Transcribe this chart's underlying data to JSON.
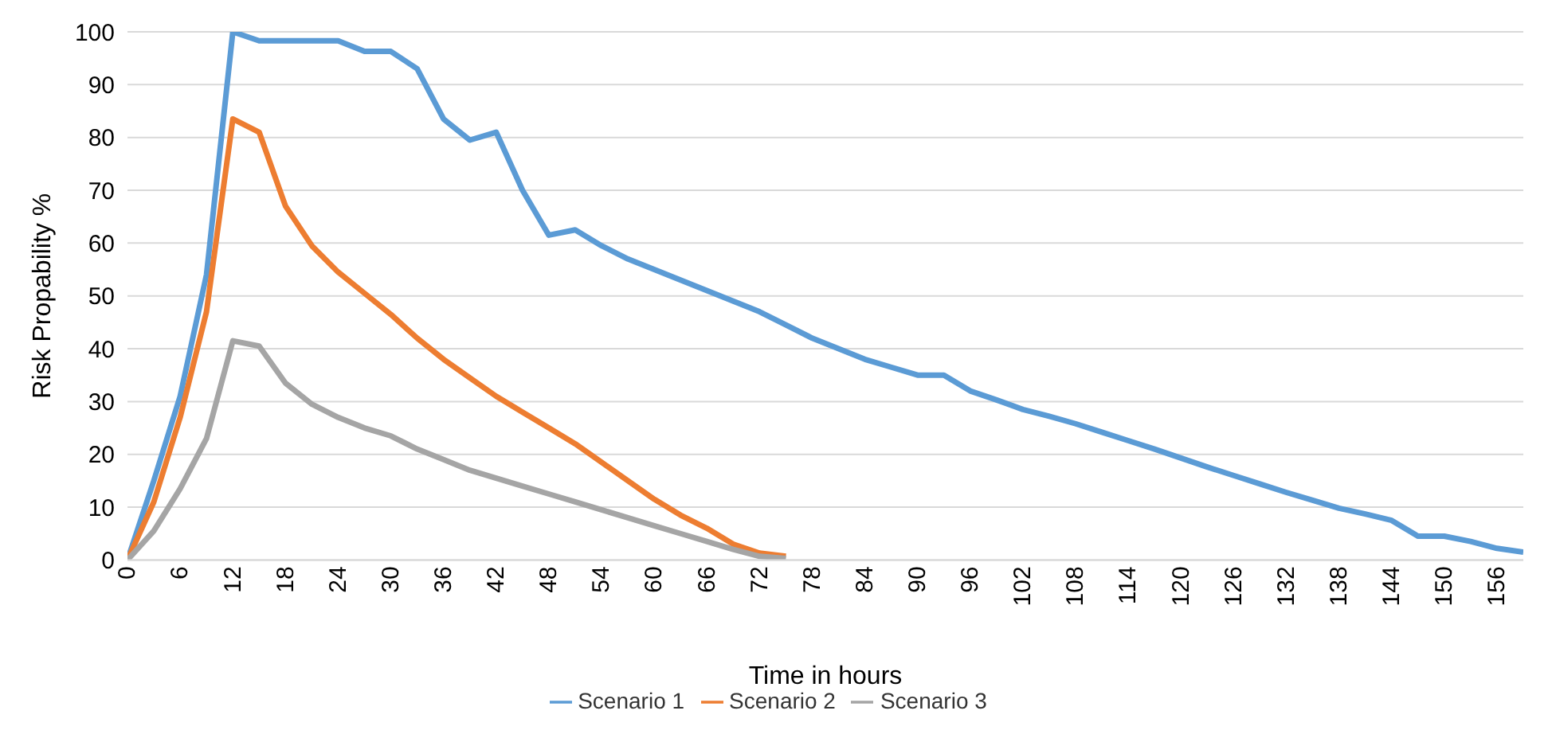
{
  "chart_data": {
    "type": "line",
    "xlabel": "Time in hours",
    "ylabel": "Risk Propability %",
    "x": [
      0,
      3,
      6,
      9,
      12,
      15,
      18,
      21,
      24,
      27,
      30,
      33,
      36,
      39,
      42,
      45,
      48,
      51,
      54,
      57,
      60,
      63,
      66,
      69,
      72,
      75,
      78,
      81,
      84,
      87,
      90,
      93,
      96,
      99,
      102,
      105,
      108,
      111,
      114,
      117,
      120,
      123,
      126,
      129,
      132,
      135,
      138,
      141,
      144,
      147,
      150,
      153,
      156,
      159
    ],
    "xlim": [
      0,
      159
    ],
    "xticks": [
      0,
      6,
      12,
      18,
      24,
      30,
      36,
      42,
      48,
      54,
      60,
      66,
      72,
      78,
      84,
      90,
      96,
      102,
      108,
      114,
      120,
      126,
      132,
      138,
      144,
      150,
      156
    ],
    "ylim": [
      0,
      100
    ],
    "yticks": [
      0,
      10,
      20,
      30,
      40,
      50,
      60,
      70,
      80,
      90,
      100
    ],
    "grid": "y",
    "legend": "bottom",
    "marker": "none",
    "line_style": "solid",
    "series": [
      {
        "name": "Scenario 1",
        "color": "#5b9bd5",
        "values": [
          0,
          15,
          31,
          54,
          100,
          98.3,
          98.3,
          98.3,
          98.3,
          96.3,
          96.3,
          93,
          83.5,
          79.5,
          81,
          70,
          61.5,
          62.5,
          59.5,
          57,
          55,
          53,
          51,
          49,
          47,
          44.5,
          42,
          40,
          38,
          36.5,
          35,
          35,
          32,
          30.3,
          28.5,
          27.2,
          25.8,
          24.2,
          22.6,
          21,
          19.3,
          17.6,
          16,
          14.4,
          12.8,
          11.3,
          9.8,
          8.7,
          7.5,
          4.5,
          4.5,
          3.5,
          2.2,
          1.5
        ]
      },
      {
        "name": "Scenario 2",
        "color": "#ed7d31",
        "x": [
          0,
          3,
          6,
          9,
          12,
          15,
          18,
          21,
          24,
          27,
          30,
          33,
          36,
          39,
          42,
          45,
          48,
          51,
          54,
          57,
          60,
          63,
          66,
          69,
          72,
          75
        ],
        "values": [
          0,
          11,
          27,
          47,
          83.5,
          81,
          67,
          59.5,
          54.5,
          50.5,
          46.5,
          42,
          38,
          34.5,
          31,
          28,
          25,
          22,
          18.5,
          15,
          11.5,
          8.5,
          6,
          3,
          1.3,
          0.7
        ]
      },
      {
        "name": "Scenario 3",
        "color": "#a5a5a5",
        "x": [
          0,
          3,
          6,
          9,
          12,
          15,
          18,
          21,
          24,
          27,
          30,
          33,
          36,
          39,
          42,
          45,
          48,
          51,
          54,
          57,
          60,
          63,
          66,
          69,
          72,
          75
        ],
        "values": [
          0,
          5.5,
          13.5,
          23,
          41.5,
          40.5,
          33.5,
          29.5,
          27,
          25,
          23.5,
          21,
          19,
          17,
          15.5,
          14,
          12.5,
          11,
          9.5,
          8,
          6.5,
          5,
          3.5,
          2,
          0.7,
          0.3
        ]
      }
    ]
  }
}
